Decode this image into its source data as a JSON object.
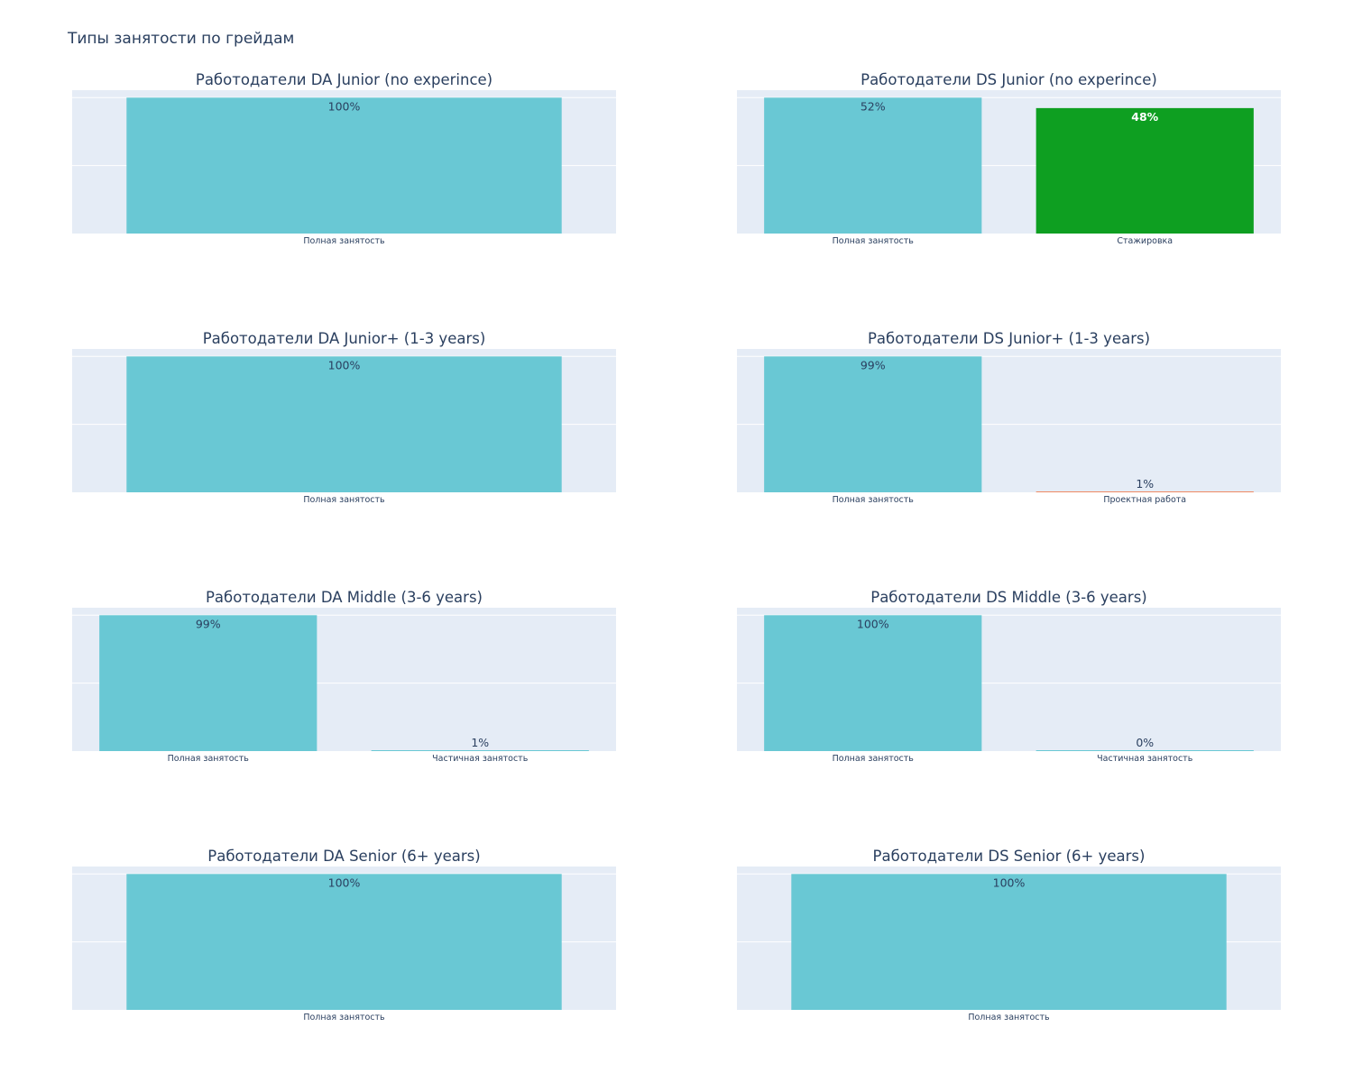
{
  "title": "Типы занятости по грейдам",
  "colors": {
    "plot_bg": "#e5ecf6",
    "grid": "#ffffff",
    "text": "#2a3f5f",
    "full_time": "#69c8d4",
    "internship": "#0e9f21",
    "project": "#ef8a63",
    "part_time": "#69c8d4"
  },
  "chart_data": [
    {
      "type": "bar",
      "title": "Работодатели DA Junior (no experince)",
      "categories": [
        "Полная занятость"
      ],
      "values": [
        100
      ],
      "labels": [
        "100%"
      ],
      "colors": [
        "#69c8d4"
      ],
      "grid": true
    },
    {
      "type": "bar",
      "title": "Работодатели DS Junior (no experince)",
      "categories": [
        "Полная занятость",
        "Стажировка"
      ],
      "values": [
        52,
        48
      ],
      "labels": [
        "52%",
        "48%"
      ],
      "colors": [
        "#69c8d4",
        "#0e9f21"
      ],
      "grid": true
    },
    {
      "type": "bar",
      "title": "Работодатели DA Junior+ (1-3 years)",
      "categories": [
        "Полная занятость"
      ],
      "values": [
        100
      ],
      "labels": [
        "100%"
      ],
      "colors": [
        "#69c8d4"
      ],
      "grid": true
    },
    {
      "type": "bar",
      "title": "Работодатели DS Junior+ (1-3 years)",
      "categories": [
        "Полная занятость",
        "Проектная работа"
      ],
      "values": [
        99,
        0.5
      ],
      "labels": [
        "99%",
        "1%"
      ],
      "colors": [
        "#69c8d4",
        "#ef8a63"
      ],
      "grid": true
    },
    {
      "type": "bar",
      "title": "Работодатели DA Middle (3-6 years)",
      "categories": [
        "Полная занятость",
        "Частичная занятость"
      ],
      "values": [
        99,
        0.5
      ],
      "labels": [
        "99%",
        "1%"
      ],
      "colors": [
        "#69c8d4",
        "#69c8d4"
      ],
      "grid": true
    },
    {
      "type": "bar",
      "title": "Работодатели DS Middle (3-6 years)",
      "categories": [
        "Полная занятость",
        "Частичная занятость"
      ],
      "values": [
        100,
        0.2
      ],
      "labels": [
        "100%",
        "0%"
      ],
      "colors": [
        "#69c8d4",
        "#69c8d4"
      ],
      "grid": true
    },
    {
      "type": "bar",
      "title": "Работодатели DA Senior (6+ years)",
      "categories": [
        "Полная занятость"
      ],
      "values": [
        100
      ],
      "labels": [
        "100%"
      ],
      "colors": [
        "#69c8d4"
      ],
      "grid": true
    },
    {
      "type": "bar",
      "title": "Работодатели DS Senior (6+ years)",
      "categories": [
        "Полная занятость"
      ],
      "values": [
        100
      ],
      "labels": [
        "100%"
      ],
      "colors": [
        "#69c8d4"
      ],
      "grid": true
    }
  ]
}
